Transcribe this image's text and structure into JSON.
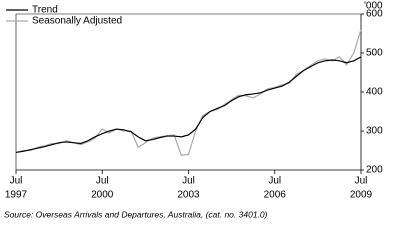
{
  "chart_data": {
    "type": "line",
    "unit_label": "'000",
    "source": "Source: Overseas Arrivals and Departures, Australia,  (cat. no. 3401.0)",
    "x": [
      "1997-07",
      "1997-10",
      "1998-01",
      "1998-04",
      "1998-07",
      "1998-10",
      "1999-01",
      "1999-04",
      "1999-07",
      "1999-10",
      "2000-01",
      "2000-04",
      "2000-07",
      "2000-10",
      "2001-01",
      "2001-04",
      "2001-07",
      "2001-10",
      "2002-01",
      "2002-04",
      "2002-07",
      "2002-10",
      "2003-01",
      "2003-04",
      "2003-07",
      "2003-10",
      "2004-01",
      "2004-04",
      "2004-07",
      "2004-10",
      "2005-01",
      "2005-04",
      "2005-07",
      "2005-10",
      "2006-01",
      "2006-04",
      "2006-07",
      "2006-10",
      "2007-01",
      "2007-04",
      "2007-07",
      "2007-10",
      "2008-01",
      "2008-04",
      "2008-07",
      "2008-10",
      "2009-01",
      "2009-04",
      "2009-07"
    ],
    "series": [
      {
        "name": "Trend",
        "color": "#000000",
        "values": [
          245,
          248,
          252,
          256,
          260,
          265,
          270,
          272,
          270,
          268,
          275,
          285,
          293,
          300,
          305,
          303,
          298,
          285,
          275,
          278,
          283,
          287,
          287,
          285,
          290,
          305,
          335,
          350,
          358,
          365,
          378,
          388,
          393,
          395,
          398,
          405,
          410,
          415,
          425,
          440,
          455,
          465,
          475,
          480,
          482,
          480,
          475,
          480,
          490
        ]
      },
      {
        "name": "Seasonally Adjusted",
        "color": "#aaaaaa",
        "values": [
          245,
          250,
          250,
          258,
          262,
          268,
          268,
          275,
          270,
          265,
          272,
          282,
          305,
          295,
          305,
          300,
          300,
          258,
          270,
          282,
          285,
          288,
          290,
          238,
          240,
          300,
          340,
          350,
          355,
          368,
          380,
          392,
          390,
          385,
          395,
          408,
          412,
          418,
          422,
          445,
          455,
          468,
          480,
          485,
          480,
          490,
          470,
          500,
          560
        ]
      }
    ],
    "xlim": [
      "1997-07",
      "2009-07"
    ],
    "xticks": [
      {
        "value": "1997-07",
        "label": [
          "Jul",
          "1997"
        ]
      },
      {
        "value": "2000-07",
        "label": [
          "Jul",
          "2000"
        ]
      },
      {
        "value": "2003-07",
        "label": [
          "Jul",
          "2003"
        ]
      },
      {
        "value": "2006-07",
        "label": [
          "Jul",
          "2006"
        ]
      },
      {
        "value": "2009-07",
        "label": [
          "Jul",
          "2009"
        ]
      }
    ],
    "ylim": [
      200,
      600
    ],
    "yticks": [
      200,
      300,
      400,
      500,
      600
    ],
    "legend": "top-left"
  }
}
